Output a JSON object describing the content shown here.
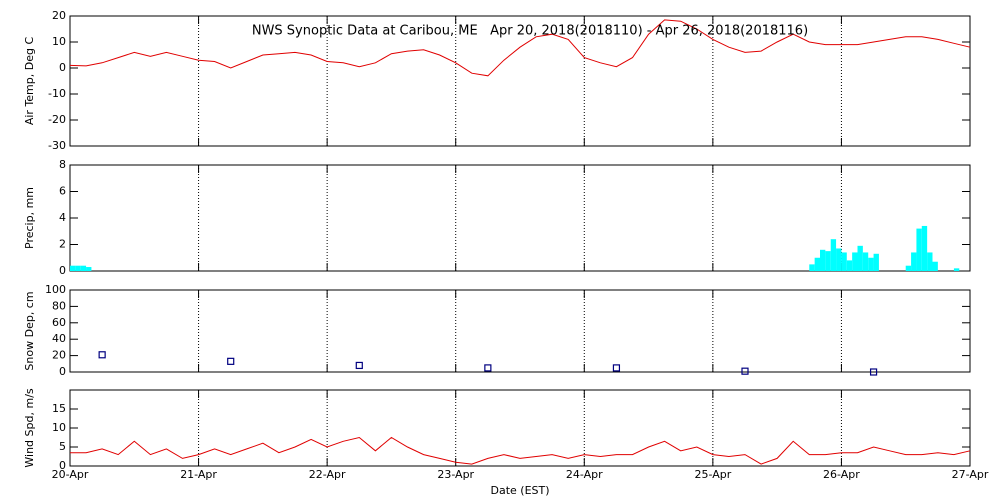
{
  "title": "NWS Synoptic Data at Caribou, ME   Apr 20, 2018(2018110) - Apr 26, 2018(2018116)",
  "chart_data": [
    {
      "type": "line",
      "ylabel": "Air Temp, Deg C",
      "ylim": [
        -30,
        20
      ],
      "yticks": [
        -30,
        -20,
        -10,
        0,
        10,
        20
      ],
      "xlim": [
        0,
        168
      ],
      "xticks": [
        0,
        24,
        48,
        72,
        96,
        120,
        144,
        168
      ],
      "grid": true,
      "series": [
        {
          "color": "#e00000",
          "x": [
            0,
            3,
            6,
            9,
            12,
            15,
            18,
            21,
            24,
            27,
            30,
            33,
            36,
            39,
            42,
            45,
            48,
            51,
            54,
            57,
            60,
            63,
            66,
            69,
            72,
            75,
            78,
            81,
            84,
            87,
            90,
            93,
            96,
            99,
            102,
            105,
            108,
            111,
            114,
            117,
            120,
            123,
            126,
            129,
            132,
            135,
            138,
            141,
            144,
            147,
            150,
            153,
            156,
            159,
            162,
            165,
            168
          ],
          "values": [
            1,
            0.8,
            2,
            4,
            6,
            4.5,
            6,
            4.5,
            3,
            2.5,
            0,
            2.5,
            5,
            5.5,
            6,
            5,
            2.5,
            2,
            0.5,
            2,
            5.5,
            6.5,
            7,
            5,
            2,
            -2,
            -3,
            3,
            8,
            12,
            13,
            11,
            4,
            2,
            0.5,
            4,
            13,
            18.5,
            18,
            15,
            11,
            8,
            6,
            6.5,
            10,
            13,
            10,
            9,
            9,
            9,
            10,
            11,
            12,
            12,
            11,
            9.5,
            8
          ]
        }
      ]
    },
    {
      "type": "bar",
      "ylabel": "Precip, mm",
      "ylim": [
        0,
        8
      ],
      "yticks": [
        0,
        2,
        4,
        6,
        8
      ],
      "xlim": [
        0,
        168
      ],
      "xticks": [
        0,
        24,
        48,
        72,
        96,
        120,
        144,
        168
      ],
      "grid": true,
      "color": "#00ffff",
      "x": [
        0,
        1,
        2,
        3,
        138,
        139,
        140,
        141,
        142,
        143,
        144,
        145,
        146,
        147,
        148,
        149,
        150,
        156,
        157,
        158,
        159,
        160,
        161,
        165
      ],
      "values": [
        0.4,
        0.4,
        0.4,
        0.3,
        0.5,
        1.0,
        1.6,
        1.5,
        2.4,
        1.7,
        1.4,
        0.8,
        1.4,
        1.9,
        1.4,
        1.0,
        1.3,
        0.4,
        1.4,
        3.2,
        3.4,
        1.4,
        0.7,
        0.2
      ]
    },
    {
      "type": "scatter",
      "ylabel": "Snow Dep, cm",
      "ylim": [
        0,
        100
      ],
      "yticks": [
        0,
        20,
        40,
        60,
        80,
        100
      ],
      "xlim": [
        0,
        168
      ],
      "xticks": [
        0,
        24,
        48,
        72,
        96,
        120,
        144,
        168
      ],
      "grid": true,
      "color": "#000080",
      "marker": "square",
      "x": [
        6,
        30,
        54,
        78,
        102,
        126,
        150
      ],
      "values": [
        21,
        13,
        8,
        5,
        5,
        1,
        0
      ]
    },
    {
      "type": "line",
      "ylabel": "Wind Spd, m/s",
      "xlabel": "Date (EST)",
      "ylim": [
        0,
        20
      ],
      "yticks": [
        0,
        5,
        10,
        15
      ],
      "xlim": [
        0,
        168
      ],
      "grid": true,
      "xticks": [
        {
          "value": 0,
          "label": "20-Apr"
        },
        {
          "value": 24,
          "label": "21-Apr"
        },
        {
          "value": 48,
          "label": "22-Apr"
        },
        {
          "value": 72,
          "label": "23-Apr"
        },
        {
          "value": 96,
          "label": "24-Apr"
        },
        {
          "value": 120,
          "label": "25-Apr"
        },
        {
          "value": 144,
          "label": "26-Apr"
        },
        {
          "value": 168,
          "label": "27-Apr"
        }
      ],
      "series": [
        {
          "color": "#e00000",
          "x": [
            0,
            3,
            6,
            9,
            12,
            15,
            18,
            21,
            24,
            27,
            30,
            33,
            36,
            39,
            42,
            45,
            48,
            51,
            54,
            57,
            60,
            63,
            66,
            69,
            72,
            75,
            78,
            81,
            84,
            87,
            90,
            93,
            96,
            99,
            102,
            105,
            108,
            111,
            114,
            117,
            120,
            123,
            126,
            129,
            132,
            135,
            138,
            141,
            144,
            147,
            150,
            153,
            156,
            159,
            162,
            165,
            168
          ],
          "values": [
            3.5,
            3.5,
            4.5,
            3,
            6.5,
            3,
            4.5,
            2,
            3,
            4.5,
            3,
            4.5,
            6,
            3.5,
            5,
            7,
            5,
            6.5,
            7.5,
            4,
            7.5,
            5,
            3,
            2,
            1,
            0.5,
            2,
            3,
            2,
            2.5,
            3,
            2,
            3,
            2.5,
            3,
            3,
            5,
            6.5,
            4,
            5,
            3,
            2.5,
            3,
            0.5,
            2,
            6.5,
            3,
            3,
            3.5,
            3.5,
            5,
            4,
            3,
            3,
            3.5,
            3,
            4
          ]
        }
      ]
    }
  ]
}
